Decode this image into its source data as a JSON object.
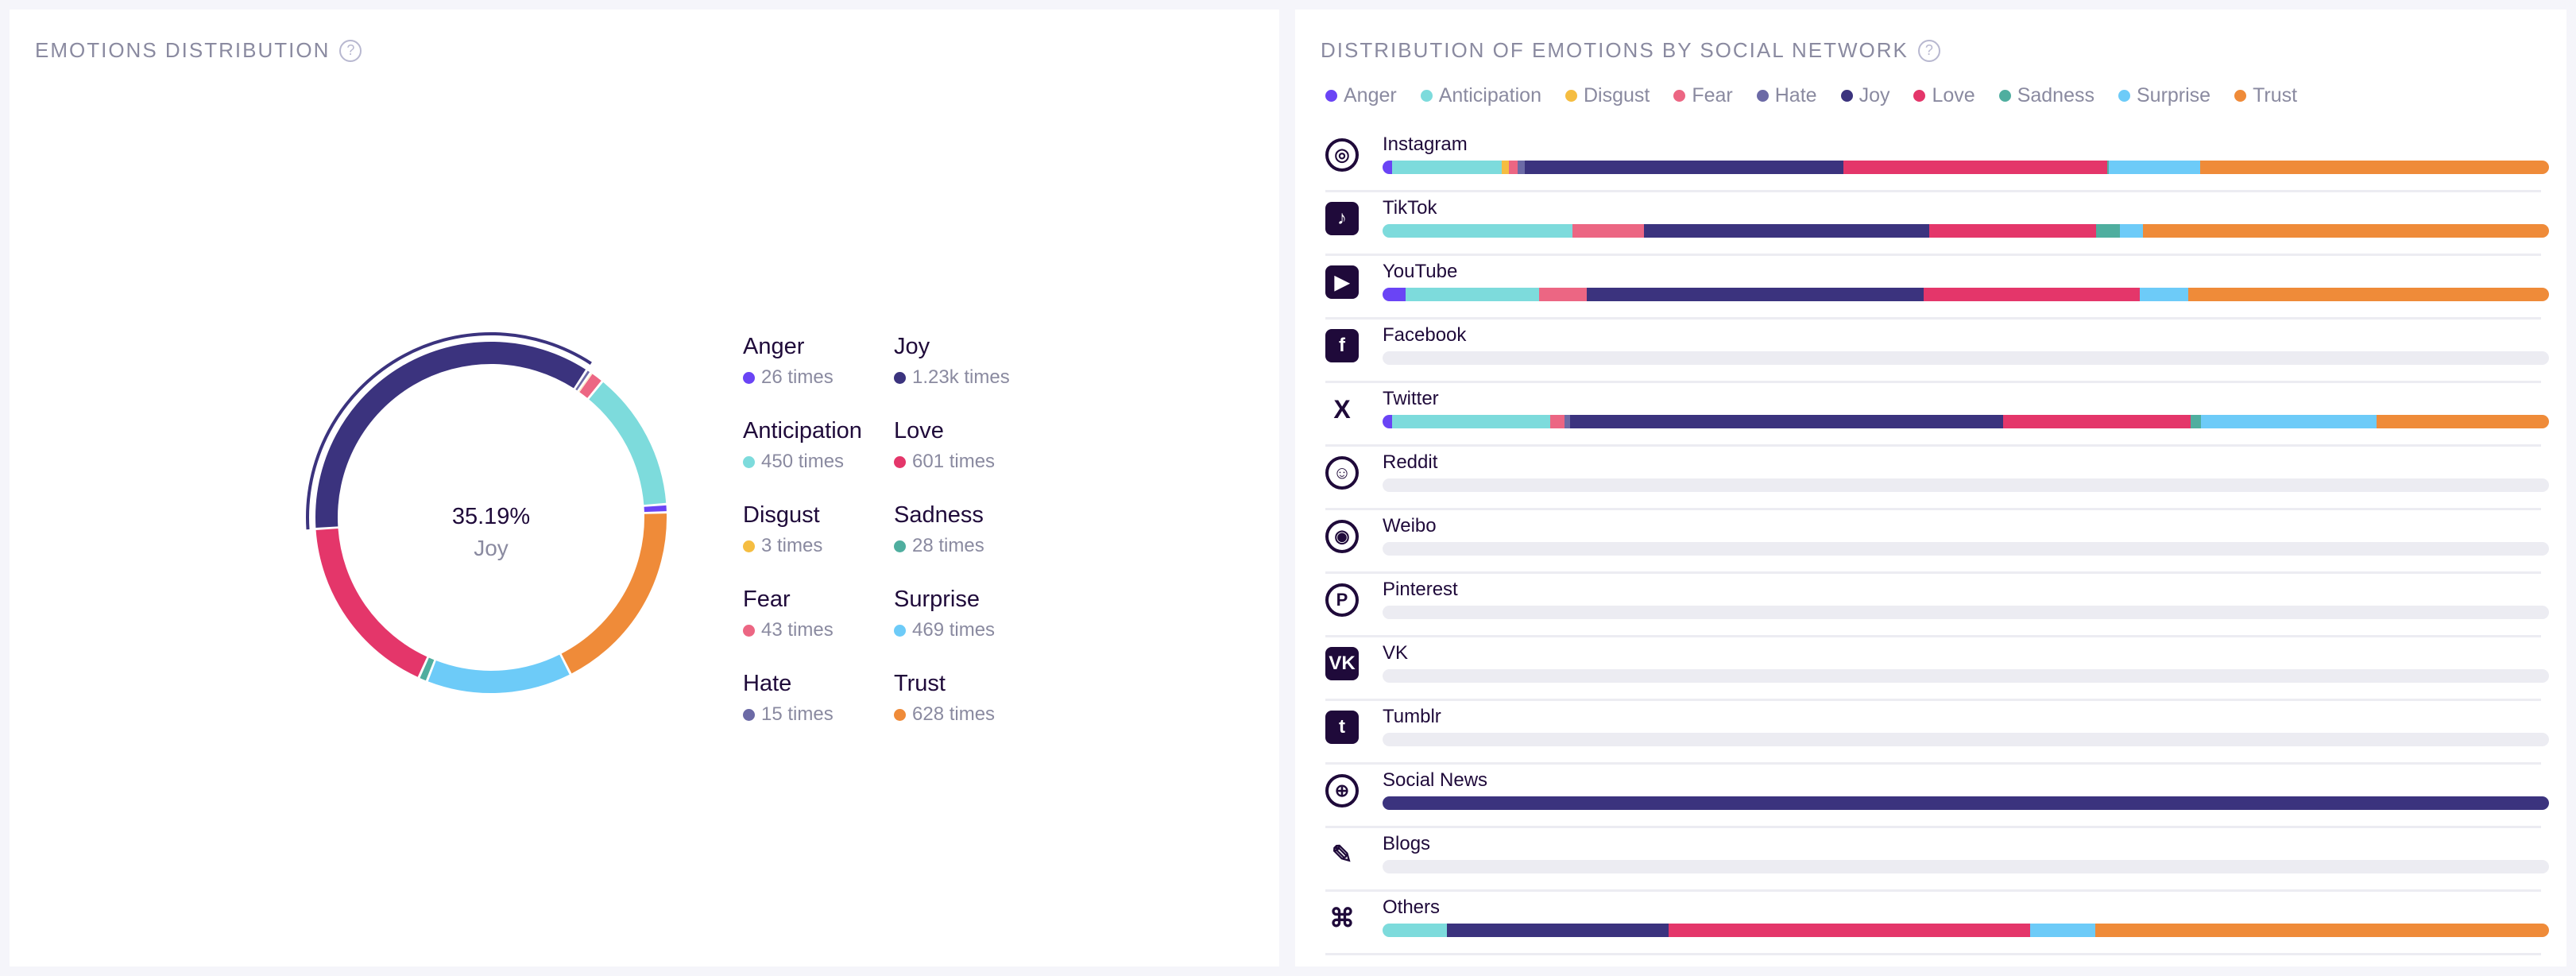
{
  "left": {
    "title": "EMOTIONS DISTRIBUTION",
    "help": "?",
    "center_value": "35.19%",
    "center_label": "Joy"
  },
  "right": {
    "title": "DISTRIBUTION OF EMOTIONS BY SOCIAL NETWORK",
    "help": "?"
  },
  "colors": {
    "Anger": "#6a44f5",
    "Anticipation": "#7ddbdc",
    "Disgust": "#f5bd41",
    "Fear": "#ec6683",
    "Hate": "#6c6aa6",
    "Joy": "#3b337e",
    "Love": "#e4366a",
    "Sadness": "#4fae9f",
    "Surprise": "#6dcbf8",
    "Trust": "#ef8b39"
  },
  "chart_data": [
    {
      "type": "pie",
      "title": "EMOTIONS DISTRIBUTION",
      "highlight": "Joy",
      "highlight_percent": "35.19%",
      "legend": [
        {
          "name": "Anger",
          "count": 26,
          "label": "26 times"
        },
        {
          "name": "Anticipation",
          "count": 450,
          "label": "450 times"
        },
        {
          "name": "Disgust",
          "count": 3,
          "label": "3 times"
        },
        {
          "name": "Fear",
          "count": 43,
          "label": "43 times"
        },
        {
          "name": "Hate",
          "count": 15,
          "label": "15 times"
        },
        {
          "name": "Joy",
          "count": 1230,
          "label": "1.23k times"
        },
        {
          "name": "Love",
          "count": 601,
          "label": "601 times"
        },
        {
          "name": "Sadness",
          "count": 28,
          "label": "28 times"
        },
        {
          "name": "Surprise",
          "count": 469,
          "label": "469 times"
        },
        {
          "name": "Trust",
          "count": 628,
          "label": "628 times"
        }
      ],
      "draw_order": [
        "Hate",
        "Disgust",
        "Fear",
        "Anticipation",
        "Anger",
        "Trust",
        "Surprise",
        "Sadness",
        "Love",
        "Joy"
      ]
    },
    {
      "type": "bar",
      "stacked": true,
      "unit": "percent",
      "title": "DISTRIBUTION OF EMOTIONS BY SOCIAL NETWORK",
      "series_names": [
        "Anger",
        "Anticipation",
        "Disgust",
        "Fear",
        "Hate",
        "Joy",
        "Love",
        "Sadness",
        "Surprise",
        "Trust"
      ],
      "networks": [
        {
          "name": "Instagram",
          "icon": "instagram-icon",
          "glyph": "◎",
          "values": [
            0.8,
            9.4,
            0.6,
            0.8,
            0.6,
            27.3,
            22.6,
            0.2,
            7.8,
            29.9
          ]
        },
        {
          "name": "TikTok",
          "icon": "tiktok-icon",
          "glyph": "♪",
          "values": [
            0,
            16.3,
            0,
            6.1,
            0,
            24.5,
            14.3,
            2.0,
            2.0,
            34.8
          ]
        },
        {
          "name": "YouTube",
          "icon": "youtube-icon",
          "glyph": "▶",
          "values": [
            2.0,
            11.4,
            0,
            4.1,
            0,
            28.9,
            18.5,
            0,
            4.2,
            30.9
          ]
        },
        {
          "name": "Facebook",
          "icon": "facebook-icon",
          "glyph": "f",
          "values": [
            0,
            0,
            0,
            0,
            0,
            0,
            0,
            0,
            0,
            0
          ]
        },
        {
          "name": "Twitter",
          "icon": "x-icon",
          "glyph": "X",
          "values": [
            0.8,
            13.6,
            0,
            1.2,
            0.5,
            37.1,
            16.1,
            0.9,
            15.0,
            14.8
          ]
        },
        {
          "name": "Reddit",
          "icon": "reddit-icon",
          "glyph": "☺",
          "values": [
            0,
            0,
            0,
            0,
            0,
            0,
            0,
            0,
            0,
            0
          ]
        },
        {
          "name": "Weibo",
          "icon": "weibo-icon",
          "glyph": "◉",
          "values": [
            0,
            0,
            0,
            0,
            0,
            0,
            0,
            0,
            0,
            0
          ]
        },
        {
          "name": "Pinterest",
          "icon": "pinterest-icon",
          "glyph": "P",
          "values": [
            0,
            0,
            0,
            0,
            0,
            0,
            0,
            0,
            0,
            0
          ]
        },
        {
          "name": "VK",
          "icon": "vk-icon",
          "glyph": "VK",
          "values": [
            0,
            0,
            0,
            0,
            0,
            0,
            0,
            0,
            0,
            0
          ]
        },
        {
          "name": "Tumblr",
          "icon": "tumblr-icon",
          "glyph": "t",
          "values": [
            0,
            0,
            0,
            0,
            0,
            0,
            0,
            0,
            0,
            0
          ]
        },
        {
          "name": "Social News",
          "icon": "globe-icon",
          "glyph": "⊕",
          "values": [
            0,
            0,
            0,
            0,
            0,
            100,
            0,
            0,
            0,
            0
          ]
        },
        {
          "name": "Blogs",
          "icon": "edit-icon",
          "glyph": "✎",
          "values": [
            0,
            0,
            0,
            0,
            0,
            0,
            0,
            0,
            0,
            0
          ]
        },
        {
          "name": "Others",
          "icon": "command-icon",
          "glyph": "⌘",
          "values": [
            0,
            5.5,
            0,
            0,
            0,
            19.0,
            31.0,
            0,
            5.6,
            38.9
          ]
        }
      ]
    }
  ]
}
